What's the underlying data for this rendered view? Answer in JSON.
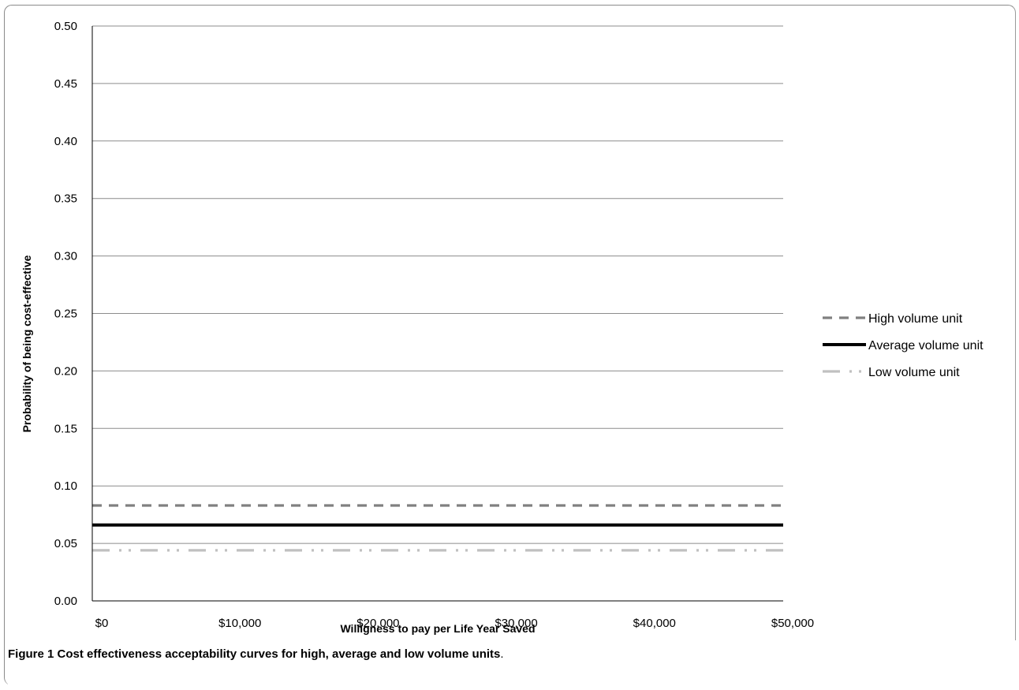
{
  "chart_data": {
    "type": "line",
    "title": "",
    "xlabel": "Willigness to pay per Life Year Saved",
    "ylabel": "Probability of being cost-effective",
    "xlim": [
      0,
      50000
    ],
    "ylim": [
      0,
      0.5
    ],
    "x_ticks": [
      "$0",
      "$10,000",
      "$20,000",
      "$30,000",
      "$40,000",
      "$50,000"
    ],
    "y_ticks": [
      "0.00",
      "0.05",
      "0.10",
      "0.15",
      "0.20",
      "0.25",
      "0.30",
      "0.35",
      "0.40",
      "0.45",
      "0.50"
    ],
    "grid": true,
    "legend_position": "right",
    "x": [
      0,
      50000
    ],
    "series": [
      {
        "name": "High volume unit",
        "values": [
          0.083,
          0.083
        ],
        "color": "#808080",
        "style": "dashed"
      },
      {
        "name": "Average volume unit",
        "values": [
          0.066,
          0.066
        ],
        "color": "#000000",
        "style": "solid"
      },
      {
        "name": "Low volume unit",
        "values": [
          0.044,
          0.044
        ],
        "color": "#c0c0c0",
        "style": "dash-dot-dot"
      }
    ]
  },
  "caption": {
    "label": "Figure 1",
    "text": "Cost effectiveness acceptability curves for high, average and low volume units",
    "end": "."
  }
}
